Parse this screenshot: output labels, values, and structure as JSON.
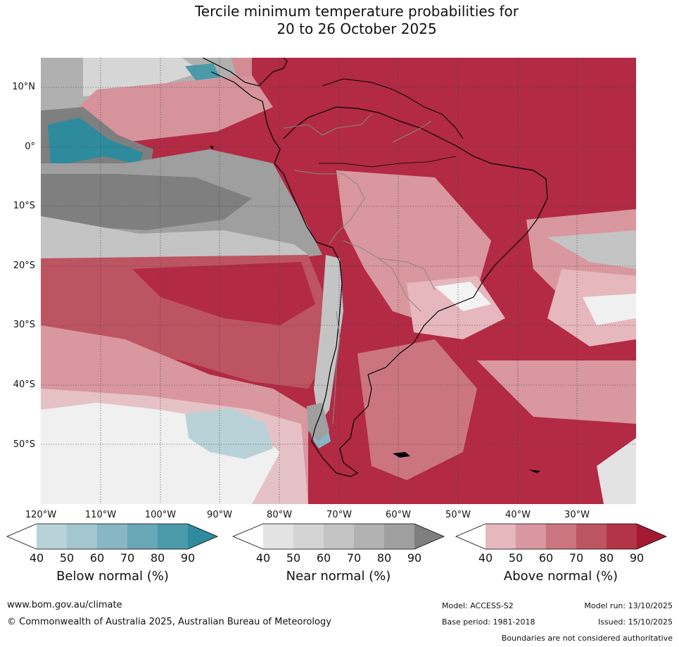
{
  "title": {
    "line1": "Tercile minimum temperature probabilities for",
    "line2": "20 to 26 October 2025"
  },
  "map": {
    "lat_labels": [
      "10°N",
      "0°",
      "10°S",
      "20°S",
      "30°S",
      "40°S",
      "50°S"
    ],
    "lon_labels": [
      "120°W",
      "110°W",
      "100°W",
      "90°W",
      "80°W",
      "70°W",
      "60°W",
      "50°W",
      "40°W",
      "30°W"
    ]
  },
  "legend": {
    "values": [
      "40",
      "50",
      "60",
      "70",
      "80",
      "90"
    ],
    "bars": [
      {
        "id": "below",
        "title": "Below normal (%)",
        "colors": [
          "#ffffff",
          "#b9d2d8",
          "#a3c6cf",
          "#88b6c3",
          "#69a7b7",
          "#4a9aaa",
          "#2e8b9e"
        ]
      },
      {
        "id": "near",
        "title": "Near normal (%)",
        "colors": [
          "#ffffff",
          "#e3e3e3",
          "#d4d4d4",
          "#c4c4c4",
          "#b2b2b2",
          "#9f9f9f",
          "#7f7f7f"
        ]
      },
      {
        "id": "above",
        "title": "Above normal (%)",
        "colors": [
          "#ffffff",
          "#e6b7bc",
          "#d9979f",
          "#cb7580",
          "#bd5462",
          "#b33447",
          "#a51a33"
        ]
      }
    ]
  },
  "footer": {
    "website": "www.bom.gov.au/climate",
    "copyright": "© Commonwealth of Australia 2025, Australian Bureau of Meteorology",
    "model": "Model: ACCESS-S2",
    "model_run": "Model run: 13/10/2025",
    "base_period": "Base period: 1981-2018",
    "issued": "Issued: 15/10/2025",
    "disclaimer": "Boundaries are not considered authoritative"
  }
}
